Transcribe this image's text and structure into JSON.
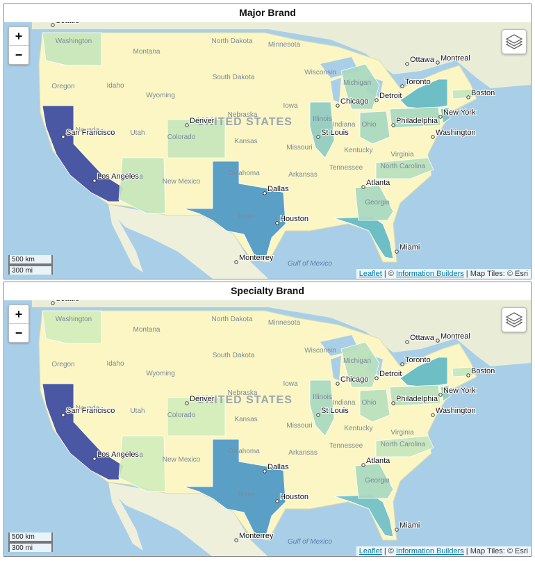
{
  "panels": [
    {
      "title": "Major Brand",
      "state_colors": {
        "california": "#3b4aa0",
        "texas": "#4c98c5",
        "florida": "#62b8c5",
        "new_york": "#62b8c5",
        "illinois": "#8fcbc0",
        "pennsylvania": "#a8d8bf",
        "ohio": "#a8d8bf",
        "michigan": "#a8d8bf",
        "georgia": "#a8d8bf",
        "washington": "#c6e6bb",
        "arizona": "#c6e6bb",
        "colorado": "#c6e6bb",
        "north_carolina": "#b9dfbd",
        "new_jersey": "#7ac2c3",
        "massachusetts": "#c6e6bb"
      }
    },
    {
      "title": "Specialty Brand",
      "state_colors": {
        "california": "#3b4aa0",
        "texas": "#4c98c5",
        "florida": "#6fbec5",
        "new_york": "#62b8c5",
        "illinois": "#a8d8bf",
        "pennsylvania": "#b9dfbd",
        "ohio": "#b9dfbd",
        "michigan": "#b9dfbd",
        "georgia": "#a8d8bf",
        "washington": "#d3ecbb",
        "arizona": "#d3ecbb",
        "colorado": "#d3ecbb",
        "north_carolina": "#c6e6bb",
        "new_jersey": "#8fcbc0",
        "massachusetts": "#c6e6bb"
      }
    }
  ],
  "map_labels": {
    "cities": [
      "Seattle",
      "San Francisco",
      "Los Angeles",
      "Denver",
      "Dallas",
      "Houston",
      "Chicago",
      "St Louis",
      "Detroit",
      "Toronto",
      "Ottawa",
      "Montreal",
      "Boston",
      "New York",
      "Philadelphia",
      "Washington",
      "Atlanta",
      "Miami",
      "Monterrey"
    ],
    "states": [
      "Washington",
      "Oregon",
      "Montana",
      "Idaho",
      "Wyoming",
      "Nevada",
      "Utah",
      "Colorado",
      "Arizona",
      "New Mexico",
      "North Dakota",
      "South Dakota",
      "Nebraska",
      "Kansas",
      "Oklahoma",
      "Texas",
      "Minnesota",
      "Iowa",
      "Missouri",
      "Arkansas",
      "Wisconsin",
      "Illinois",
      "Indiana",
      "Ohio",
      "Kentucky",
      "Tennessee",
      "Georgia",
      "Virginia",
      "North Carolina",
      "Michigan"
    ],
    "country": "UNITED STATES",
    "water": "Gulf of Mexico"
  },
  "controls": {
    "zoom_in": "+",
    "zoom_out": "−",
    "scale_km": "500 km",
    "scale_mi": "300 mi"
  },
  "attribution": {
    "leaflet": "Leaflet",
    "sep1": " | © ",
    "ib": "Information Builders",
    "tiles": " | Map Tiles: © Esri"
  },
  "colors": {
    "ocean": "#a9cfe8",
    "land_us": "#fbf6c4",
    "land_other": "#eef0dc",
    "land_canada": "#e9edd8"
  }
}
